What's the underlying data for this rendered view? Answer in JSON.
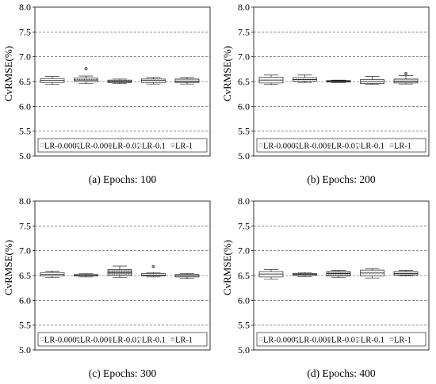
{
  "chart_data": [
    {
      "type": "box",
      "caption": "(a) Epochs: 100",
      "ylabel": "CvRMSE(%)",
      "ylim": [
        5.0,
        8.0
      ],
      "yticks": [
        "5.0",
        "5.5",
        "6.0",
        "6.5",
        "7.0",
        "7.5",
        "8.0"
      ],
      "grid": true,
      "legend_position": "bottom",
      "series": [
        {
          "name": "LR-0.0001",
          "min": 6.44,
          "q1": 6.48,
          "median": 6.52,
          "q3": 6.56,
          "max": 6.6,
          "outliers": []
        },
        {
          "name": "LR-0.001",
          "min": 6.46,
          "q1": 6.5,
          "median": 6.53,
          "q3": 6.57,
          "max": 6.61,
          "outliers": [
            6.76
          ]
        },
        {
          "name": "LR-0.01",
          "min": 6.46,
          "q1": 6.48,
          "median": 6.5,
          "q3": 6.53,
          "max": 6.55,
          "outliers": []
        },
        {
          "name": "LR-0.1",
          "min": 6.45,
          "q1": 6.48,
          "median": 6.52,
          "q3": 6.55,
          "max": 6.58,
          "outliers": []
        },
        {
          "name": "LR-1",
          "min": 6.45,
          "q1": 6.48,
          "median": 6.51,
          "q3": 6.55,
          "max": 6.58,
          "outliers": []
        }
      ]
    },
    {
      "type": "box",
      "caption": "(b) Epochs: 200",
      "ylabel": "CvRMSE(%)",
      "ylim": [
        5.0,
        8.0
      ],
      "yticks": [
        "5.0",
        "5.5",
        "6.0",
        "6.5",
        "7.0",
        "7.5",
        "8.0"
      ],
      "grid": true,
      "legend_position": "bottom",
      "series": [
        {
          "name": "LR-0.0001",
          "min": 6.44,
          "q1": 6.47,
          "median": 6.53,
          "q3": 6.59,
          "max": 6.63,
          "outliers": []
        },
        {
          "name": "LR-0.001",
          "min": 6.48,
          "q1": 6.51,
          "median": 6.54,
          "q3": 6.58,
          "max": 6.63,
          "outliers": []
        },
        {
          "name": "LR-0.01",
          "min": 6.48,
          "q1": 6.49,
          "median": 6.5,
          "q3": 6.52,
          "max": 6.53,
          "outliers": []
        },
        {
          "name": "LR-0.1",
          "min": 6.44,
          "q1": 6.46,
          "median": 6.5,
          "q3": 6.54,
          "max": 6.6,
          "outliers": []
        },
        {
          "name": "LR-1",
          "min": 6.45,
          "q1": 6.47,
          "median": 6.51,
          "q3": 6.55,
          "max": 6.62,
          "outliers": [
            6.66
          ]
        }
      ]
    },
    {
      "type": "box",
      "caption": "(c) Epochs: 300",
      "ylabel": "CvRMSE(%)",
      "ylim": [
        5.0,
        8.0
      ],
      "yticks": [
        "5.0",
        "5.5",
        "6.0",
        "6.5",
        "7.0",
        "7.5",
        "8.0"
      ],
      "grid": true,
      "legend_position": "bottom",
      "series": [
        {
          "name": "LR-0.0001",
          "min": 6.46,
          "q1": 6.49,
          "median": 6.52,
          "q3": 6.56,
          "max": 6.59,
          "outliers": []
        },
        {
          "name": "LR-0.001",
          "min": 6.47,
          "q1": 6.49,
          "median": 6.5,
          "q3": 6.52,
          "max": 6.54,
          "outliers": []
        },
        {
          "name": "LR-0.01",
          "min": 6.46,
          "q1": 6.5,
          "median": 6.56,
          "q3": 6.62,
          "max": 6.69,
          "outliers": []
        },
        {
          "name": "LR-0.1",
          "min": 6.47,
          "q1": 6.49,
          "median": 6.51,
          "q3": 6.54,
          "max": 6.56,
          "outliers": [
            6.68
          ]
        },
        {
          "name": "LR-1",
          "min": 6.44,
          "q1": 6.47,
          "median": 6.5,
          "q3": 6.52,
          "max": 6.54,
          "outliers": []
        }
      ]
    },
    {
      "type": "box",
      "caption": "(d) Epochs: 400",
      "ylabel": "CvRMSE(%)",
      "ylim": [
        5.0,
        8.0
      ],
      "yticks": [
        "5.0",
        "5.5",
        "6.0",
        "6.5",
        "7.0",
        "7.5",
        "8.0"
      ],
      "grid": true,
      "legend_position": "bottom",
      "series": [
        {
          "name": "LR-0.0001",
          "min": 6.43,
          "q1": 6.47,
          "median": 6.53,
          "q3": 6.58,
          "max": 6.62,
          "outliers": []
        },
        {
          "name": "LR-0.001",
          "min": 6.48,
          "q1": 6.5,
          "median": 6.52,
          "q3": 6.54,
          "max": 6.56,
          "outliers": []
        },
        {
          "name": "LR-0.01",
          "min": 6.46,
          "q1": 6.49,
          "median": 6.54,
          "q3": 6.58,
          "max": 6.6,
          "outliers": []
        },
        {
          "name": "LR-0.1",
          "min": 6.45,
          "q1": 6.49,
          "median": 6.55,
          "q3": 6.61,
          "max": 6.64,
          "outliers": []
        },
        {
          "name": "LR-1",
          "min": 6.49,
          "q1": 6.51,
          "median": 6.54,
          "q3": 6.58,
          "max": 6.6,
          "outliers": []
        }
      ]
    }
  ]
}
